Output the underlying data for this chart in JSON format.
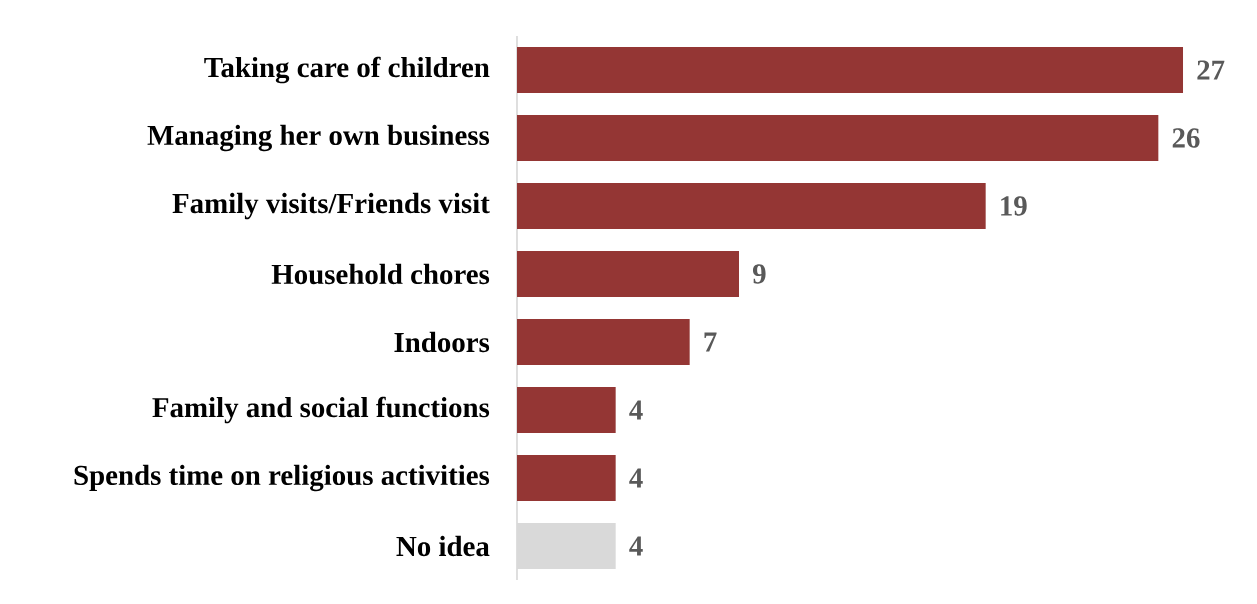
{
  "chart_data": {
    "type": "bar",
    "orientation": "horizontal",
    "categories": [
      "Taking care of children",
      "Managing her own business",
      "Family visits/Friends visit",
      "Household chores",
      "Indoors",
      "Family and social functions",
      "Spends time on religious activities",
      "No idea"
    ],
    "values": [
      27,
      26,
      19,
      9,
      7,
      4,
      4,
      4
    ],
    "colors": [
      "#943634",
      "#943634",
      "#943634",
      "#943634",
      "#943634",
      "#943634",
      "#943634",
      "#d9d9d9"
    ],
    "data_labels": true
  }
}
